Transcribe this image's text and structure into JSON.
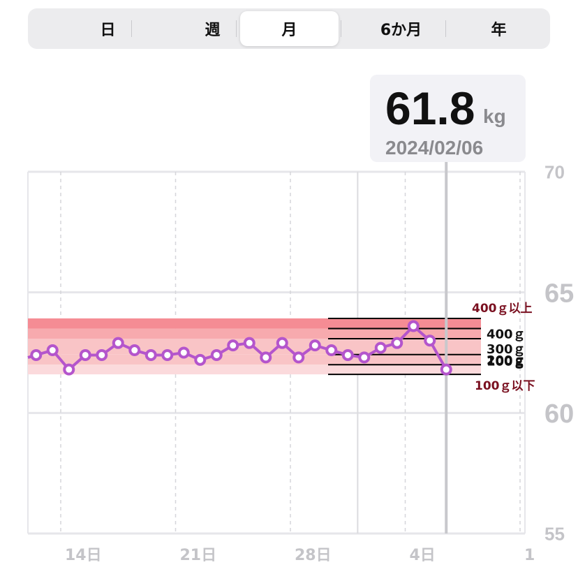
{
  "tabs": [
    {
      "label": "日",
      "active": false
    },
    {
      "label": "週",
      "active": false
    },
    {
      "label": "月",
      "active": true
    },
    {
      "label": "6か月",
      "active": false
    },
    {
      "label": "年",
      "active": false
    }
  ],
  "readout": {
    "value": "61.8",
    "unit": "kg",
    "date": "2024/02/06"
  },
  "colors": {
    "line": "#b455cc",
    "band_top": "#f58c94",
    "band_upper": "#f7aaae",
    "band_middle": "#f9c4c6",
    "band_lower": "#fbdadc",
    "grid": "#e6e6ea",
    "tick": "#c4c4c8",
    "selection": "#c8c8cc"
  },
  "chart_data": {
    "type": "line",
    "x_tick_labels": [
      "14日",
      "21日",
      "28日",
      "4日",
      "1"
    ],
    "y_tick_labels": [
      "70",
      "65",
      "60",
      "55"
    ],
    "ylim": [
      55,
      70
    ],
    "xlim": [
      0,
      30.7
    ],
    "x_ticks": [
      2,
      9,
      16,
      23,
      30
    ],
    "series": [
      {
        "x": [
          0,
          0.5,
          1.5,
          2.5,
          3.5,
          4.5,
          5.5,
          6.5,
          7.5,
          8.5,
          9.5,
          10.5,
          11.5,
          12.5,
          13.5,
          14.5,
          15.5,
          16.5,
          17.5,
          18.5,
          19.5,
          20.5,
          21.5,
          22.5,
          23.5,
          24.5,
          25.5
        ],
        "y": [
          62.3,
          62.4,
          62.6,
          61.8,
          62.4,
          62.4,
          62.9,
          62.6,
          62.4,
          62.4,
          62.5,
          62.2,
          62.4,
          62.8,
          62.9,
          62.3,
          62.9,
          62.3,
          62.8,
          62.6,
          62.4,
          62.3,
          62.7,
          62.9,
          63.6,
          63.0,
          61.8
        ]
      }
    ],
    "bands": [
      {
        "label": "400ｇ以上",
        "from": 63.5,
        "to": 63.92
      },
      {
        "label": "400ｇ",
        "from": 63.08,
        "to": 63.5
      },
      {
        "label": "300ｇ",
        "from": 62.42,
        "to": 63.08
      },
      {
        "label": "200ｇ",
        "from": 62.0,
        "to": 62.42
      },
      {
        "label": "100ｇ",
        "from": 61.82,
        "to": 62.0
      },
      {
        "label": "100ｇ以下",
        "from": 61.6,
        "to": 61.82
      }
    ],
    "selected": {
      "date": "2024/02/06",
      "value": 61.8
    }
  }
}
